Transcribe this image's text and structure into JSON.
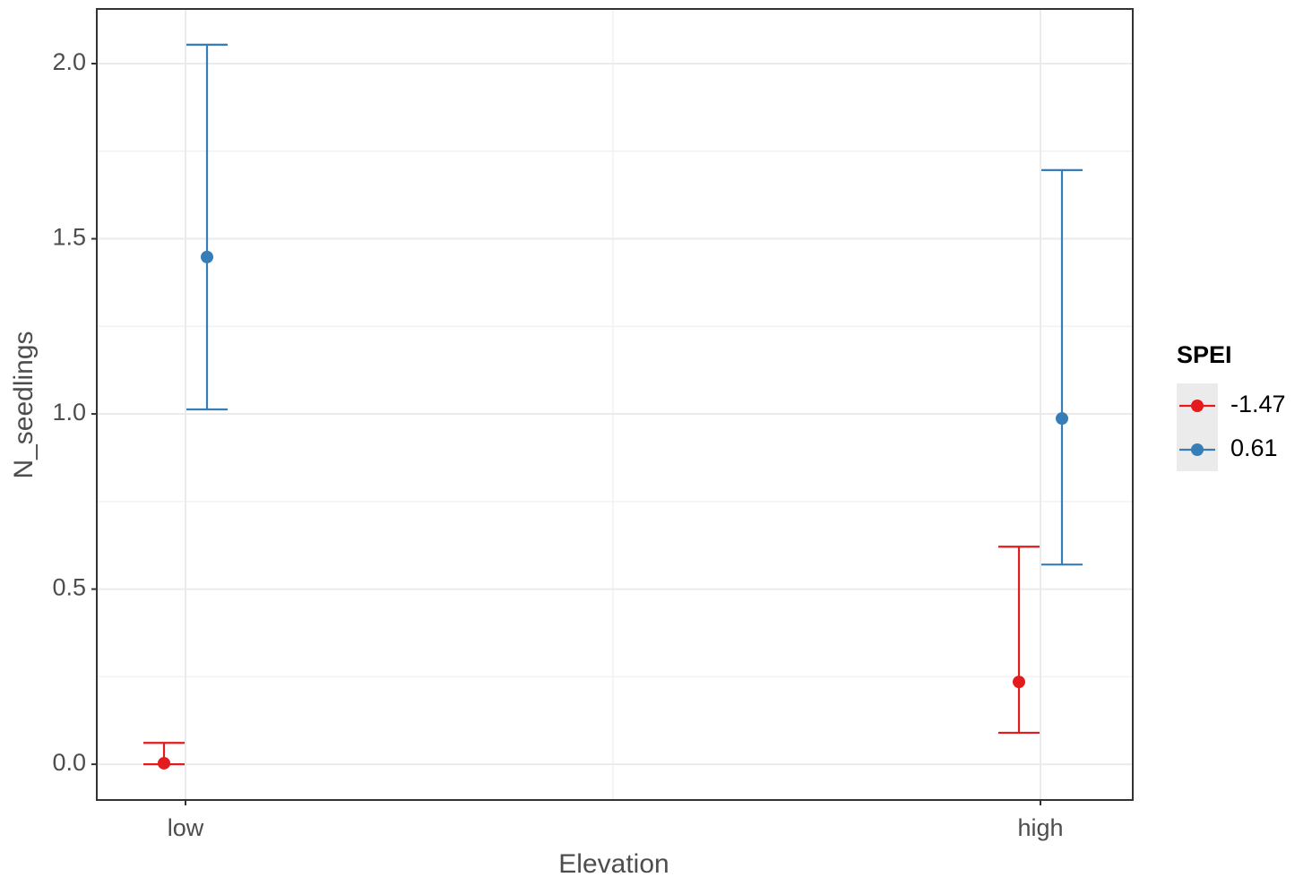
{
  "chart_data": {
    "type": "errorbar",
    "x_label": "Elevation",
    "y_label": "N_seedlings",
    "categories": [
      "low",
      "high"
    ],
    "series": [
      {
        "name": "-1.47",
        "color": "#e41a1c",
        "values": [
          0.003,
          0.235
        ],
        "lower": [
          0.0,
          0.09
        ],
        "upper": [
          0.061,
          0.621
        ]
      },
      {
        "name": "0.61",
        "color": "#377eb8",
        "values": [
          1.448,
          0.987
        ],
        "lower": [
          1.013,
          0.57
        ],
        "upper": [
          2.054,
          1.696
        ]
      }
    ],
    "legend_title": "SPEI",
    "legend_position": "right",
    "ylim": [
      -0.102,
      2.156
    ],
    "yticks": [
      {
        "value": 0,
        "label": "0.0"
      },
      {
        "value": 0.5,
        "label": "0.5"
      },
      {
        "value": 1,
        "label": "1.0"
      },
      {
        "value": 1.5,
        "label": "1.5"
      },
      {
        "value": 2,
        "label": "2.0"
      }
    ],
    "grid": true
  }
}
